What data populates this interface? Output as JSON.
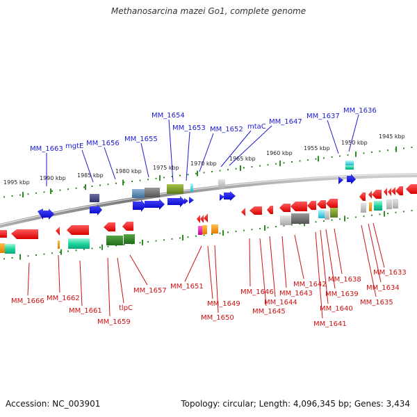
{
  "title": "Methanosarcina mazei Go1, complete genome",
  "footer": {
    "accession": "Accession: NC_003901",
    "summary": "Topology: circular; Length: 4,096,345 bp; Genes: 3,434"
  },
  "scale_labels": [
    "1995 kbp",
    "1990 kbp",
    "1985 kbp",
    "1980 kbp",
    "1975 kbp",
    "1970 kbp",
    "1965 kbp",
    "1960 kbp",
    "1955 kbp",
    "1950 kbp",
    "1945 kbp"
  ],
  "top_genes": [
    "MM_1663",
    "mgtE",
    "MM_1656",
    "MM_1655",
    "MM_1654",
    "MM_1653",
    "MM_1652",
    "mtaC",
    "MM_1647",
    "MM_1637",
    "MM_1636"
  ],
  "bottom_genes": [
    "MM_1666",
    "MM_1662",
    "MM_1661",
    "MM_1659",
    "tlpC",
    "MM_1657",
    "MM_1651",
    "MM_1649",
    "MM_1650",
    "MM_1646",
    "MM_1645",
    "MM_1644",
    "MM_1643",
    "MM_1642",
    "MM_1641",
    "MM_1640",
    "MM_1639",
    "MM_1638",
    "MM_1635",
    "MM_1634",
    "MM_1633"
  ],
  "colors": {
    "forward_strand": "#1010e0",
    "reverse_strand": "#ee1010",
    "backbone": "#888888",
    "tick": "#2e8b22",
    "top_label": "#1a1ad0",
    "bottom_label": "#cc1010"
  }
}
